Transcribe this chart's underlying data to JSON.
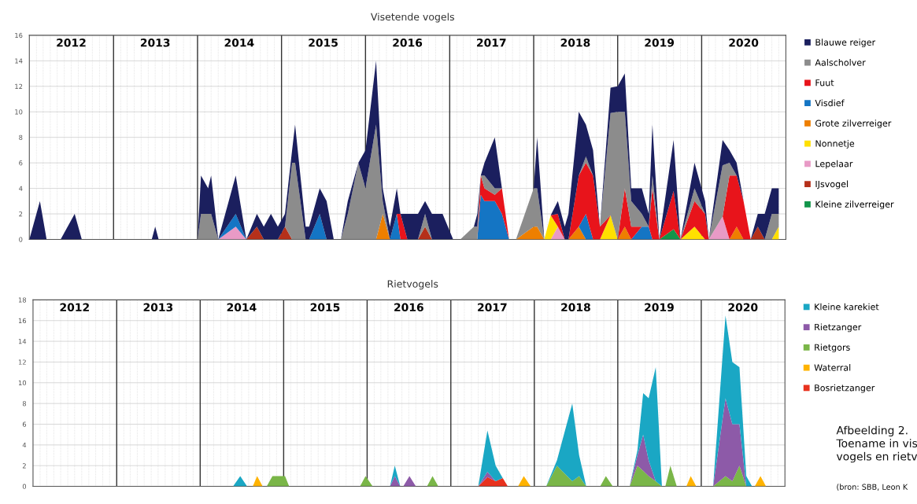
{
  "chart_data": [
    {
      "type": "area",
      "title": "Visetende vogels",
      "stacked": true,
      "x": [
        "2012-01-01",
        "2012-02-16",
        "2012-03-16",
        "2012-05-16",
        "2012-07-16",
        "2012-08-16",
        "2013-06-16",
        "2013-07-01",
        "2013-07-16",
        "2014-01-01",
        "2014-01-16",
        "2014-02-16",
        "2014-03-01",
        "2014-04-01",
        "2014-06-16",
        "2014-08-01",
        "2014-09-16",
        "2014-10-16",
        "2014-11-16",
        "2014-12-16",
        "2015-01-16",
        "2015-02-16",
        "2015-03-01",
        "2015-04-16",
        "2015-05-01",
        "2015-06-16",
        "2015-07-16",
        "2015-08-16",
        "2015-09-16",
        "2015-10-16",
        "2015-12-01",
        "2016-01-01",
        "2016-02-16",
        "2016-03-16",
        "2016-04-16",
        "2016-05-16",
        "2016-06-01",
        "2016-07-01",
        "2016-08-16",
        "2016-09-16",
        "2016-10-16",
        "2016-12-01",
        "2017-01-16",
        "2017-02-16",
        "2017-04-16",
        "2017-05-01",
        "2017-05-16",
        "2017-06-01",
        "2017-07-16",
        "2017-08-16",
        "2017-09-16",
        "2017-10-16",
        "2018-01-01",
        "2018-01-16",
        "2018-02-16",
        "2018-03-16",
        "2018-04-16",
        "2018-05-16",
        "2018-06-01",
        "2018-07-16",
        "2018-08-16",
        "2018-09-16",
        "2018-10-16",
        "2018-12-01",
        "2019-01-01",
        "2019-02-01",
        "2019-03-01",
        "2019-04-16",
        "2019-05-16",
        "2019-06-01",
        "2019-07-01",
        "2019-09-01",
        "2019-10-01",
        "2019-12-01",
        "2020-01-16",
        "2020-02-01",
        "2020-04-01",
        "2020-05-01",
        "2020-06-01",
        "2020-07-01",
        "2020-08-01",
        "2020-09-01",
        "2020-10-01",
        "2020-11-01",
        "2020-12-01"
      ],
      "series": [
        {
          "name": "Kleine zilverreiger",
          "color": "#12954a",
          "values": [
            0,
            0,
            0,
            0,
            0,
            0,
            0,
            0,
            0,
            0,
            0,
            0,
            0,
            0,
            0,
            0,
            0,
            0,
            0,
            0,
            0,
            0,
            0,
            0,
            0,
            0,
            0,
            0,
            0,
            0,
            0,
            0,
            0,
            0,
            0,
            0,
            0,
            0,
            0,
            0,
            0,
            0,
            0,
            0,
            0,
            0,
            0,
            0,
            0,
            0,
            0,
            0,
            0,
            0,
            0,
            0,
            0,
            0,
            0,
            0,
            0,
            0,
            0,
            0,
            0,
            0,
            0,
            0,
            0,
            0,
            0,
            0.8,
            0,
            0,
            0,
            0,
            0,
            0,
            0,
            0,
            0,
            0,
            0,
            0,
            0
          ]
        },
        {
          "name": "IJsvogel",
          "color": "#b5301a",
          "values": [
            0,
            0,
            0,
            0,
            0,
            0,
            0,
            0,
            0,
            0,
            0,
            0,
            0,
            0,
            0,
            0,
            1,
            0,
            0,
            0,
            1,
            0,
            0,
            0,
            0,
            0,
            0,
            0,
            0,
            0,
            0,
            0,
            0,
            0,
            0,
            0,
            0,
            0,
            0,
            1,
            0,
            0,
            0,
            0,
            0,
            0,
            0,
            0,
            0,
            0,
            0,
            0,
            0,
            0,
            0,
            0,
            0,
            0,
            0,
            0,
            0,
            0,
            0,
            0,
            0,
            0,
            0,
            0,
            0,
            0,
            0,
            0,
            0,
            0,
            0,
            0,
            0,
            0,
            0,
            0,
            0,
            1,
            0,
            0,
            0
          ]
        },
        {
          "name": "Lepelaar",
          "color": "#e89ac6",
          "values": [
            0,
            0,
            0,
            0,
            0,
            0,
            0,
            0,
            0,
            0,
            0,
            0,
            0,
            0,
            1,
            0,
            0,
            0,
            0,
            0,
            0,
            0,
            0,
            0,
            0,
            0,
            0,
            0,
            0,
            0,
            0,
            0,
            0,
            0,
            0,
            0,
            0,
            0,
            0,
            0,
            0,
            0,
            0,
            0,
            0,
            0,
            0,
            0,
            0,
            0,
            0,
            0,
            0,
            0,
            0,
            0,
            1,
            0,
            0,
            0,
            0,
            0,
            0,
            0,
            0,
            0,
            0,
            0,
            0,
            0,
            0,
            0,
            0,
            0,
            0,
            0,
            1.8,
            0,
            0,
            0,
            0,
            0,
            0,
            0,
            0
          ]
        },
        {
          "name": "Nonnetje",
          "color": "#ffe000",
          "values": [
            0,
            0,
            0,
            0,
            0,
            0,
            0,
            0,
            0,
            0,
            0,
            0,
            0,
            0,
            0,
            0,
            0,
            0,
            0,
            0,
            0,
            0,
            0,
            0,
            0,
            0,
            0,
            0,
            0,
            0,
            0,
            0,
            0,
            0,
            0,
            0,
            0,
            0,
            0,
            0,
            0,
            0,
            0,
            0,
            0,
            0,
            0,
            0,
            0,
            0,
            0,
            0,
            0,
            0,
            0,
            1.9,
            0,
            0,
            0,
            0,
            0,
            0,
            0,
            1.9,
            0,
            0,
            0,
            0,
            0,
            0,
            0,
            0,
            0,
            1,
            0,
            0,
            0,
            0,
            0,
            0,
            0,
            0,
            0,
            0,
            1
          ]
        },
        {
          "name": "Grote zilverreiger",
          "color": "#ee7f00",
          "values": [
            0,
            0,
            0,
            0,
            0,
            0,
            0,
            0,
            0,
            0,
            0,
            0,
            0,
            0,
            0,
            0,
            0,
            0,
            0,
            0,
            0,
            0,
            0,
            0,
            0,
            0,
            0,
            0,
            0,
            0,
            0,
            0,
            0,
            2,
            0,
            0,
            0,
            0,
            0,
            0,
            0,
            0,
            0,
            0,
            0,
            0,
            0,
            0,
            0,
            0,
            0,
            0,
            1,
            1,
            0,
            0,
            0,
            0,
            0,
            1,
            0,
            0,
            0,
            0,
            0,
            1,
            0,
            0,
            0,
            0,
            0,
            0,
            0,
            0,
            0,
            0,
            0,
            0,
            1,
            0,
            0,
            0,
            0,
            0,
            0
          ]
        },
        {
          "name": "Visdief",
          "color": "#1475c4",
          "values": [
            0,
            0,
            0,
            0,
            0,
            0,
            0,
            0,
            0,
            0,
            0,
            0,
            0,
            0,
            1,
            0,
            0,
            0,
            0,
            0,
            0,
            0,
            0,
            0,
            0,
            2,
            0,
            0,
            0,
            0,
            0,
            0,
            0,
            0,
            0,
            2,
            0,
            0,
            0,
            0,
            0,
            0,
            0,
            0,
            0,
            0,
            3.5,
            3,
            3,
            2,
            0,
            0,
            0,
            0,
            0,
            0,
            0,
            0,
            0,
            0,
            2,
            0,
            0,
            0,
            0,
            0,
            0,
            1,
            1,
            0,
            0,
            0,
            0,
            0,
            0,
            0,
            0,
            0,
            0,
            0,
            0,
            0,
            0,
            0,
            0
          ]
        },
        {
          "name": "Fuut",
          "color": "#e8141b",
          "values": [
            0,
            0,
            0,
            0,
            0,
            0,
            0,
            0,
            0,
            0,
            0,
            0,
            0,
            0,
            0,
            0,
            0,
            0,
            0,
            0,
            0,
            0,
            0,
            0,
            0,
            0,
            0,
            0,
            0,
            0,
            0,
            0,
            0,
            0,
            0,
            0,
            2,
            0,
            0,
            0,
            0,
            0,
            0,
            0,
            0,
            0,
            1.5,
            1,
            0.5,
            2,
            0,
            0,
            0,
            0,
            0,
            0,
            1,
            0,
            0,
            4,
            4,
            5,
            1,
            0,
            0,
            3,
            1,
            0,
            0,
            4,
            0,
            3,
            0,
            2,
            2,
            0,
            0,
            5,
            4,
            3,
            0,
            0,
            0,
            0,
            0
          ]
        },
        {
          "name": "Aalscholver",
          "color": "#8c8c8c",
          "values": [
            0,
            0,
            0,
            0,
            0,
            0,
            0,
            0,
            0,
            0,
            2,
            2,
            2,
            0,
            0,
            0,
            0,
            0,
            0,
            0,
            0,
            6,
            6,
            0,
            0,
            0,
            0,
            0,
            0,
            2,
            6,
            4,
            9,
            1,
            0,
            0,
            0,
            0,
            0,
            1,
            0,
            0,
            0,
            0,
            1,
            1,
            0,
            1,
            0.5,
            0,
            0,
            0,
            3,
            3,
            0,
            0,
            0,
            0,
            0,
            0,
            0.5,
            0,
            0,
            8,
            10,
            6,
            2,
            1,
            0,
            1,
            0,
            0,
            0,
            1,
            0,
            0,
            4,
            1,
            0,
            0,
            0,
            0,
            0,
            2,
            1
          ]
        },
        {
          "name": "Blauwe reiger",
          "color": "#1b1f5e",
          "values": [
            0,
            3,
            0,
            0,
            2,
            0,
            0,
            1,
            0,
            0,
            3,
            2,
            3,
            0,
            3,
            0,
            1,
            1,
            2,
            1,
            1,
            1,
            3,
            1,
            1,
            2,
            3,
            0,
            0,
            1,
            0,
            3,
            5,
            1,
            1,
            2,
            0,
            2,
            2,
            1,
            2,
            2,
            0,
            0,
            0,
            1,
            0,
            1,
            4,
            0,
            0,
            0,
            0,
            4,
            0,
            0,
            1,
            1,
            2,
            5,
            2.5,
            2,
            0,
            2,
            2,
            3,
            1,
            2,
            1,
            4,
            0,
            4,
            0,
            2,
            1,
            0,
            2,
            1,
            1,
            0,
            0,
            1,
            2,
            2,
            2
          ]
        }
      ],
      "xlim": [
        "2012-01-01",
        "2021-01-01"
      ],
      "xticks": [
        {
          "value": "2012-07-01",
          "label": "2012"
        },
        {
          "value": "2013-07-01",
          "label": "2013"
        },
        {
          "value": "2014-07-01",
          "label": "2014"
        },
        {
          "value": "2015-07-01",
          "label": "2015"
        },
        {
          "value": "2016-07-01",
          "label": "2016"
        },
        {
          "value": "2017-07-01",
          "label": "2017"
        },
        {
          "value": "2018-07-01",
          "label": "2018"
        },
        {
          "value": "2019-07-01",
          "label": "2019"
        },
        {
          "value": "2020-07-01",
          "label": "2020"
        }
      ],
      "ylim": [
        0,
        16
      ],
      "yticks": [
        0,
        2,
        4,
        6,
        8,
        10,
        12,
        14,
        16
      ],
      "ref_lines": [
        {
          "axis": "x",
          "value": "2013-01-01",
          "color": "#333333"
        },
        {
          "axis": "x",
          "value": "2014-01-01",
          "color": "#333333"
        },
        {
          "axis": "x",
          "value": "2015-01-01",
          "color": "#333333"
        },
        {
          "axis": "x",
          "value": "2016-01-01",
          "color": "#333333"
        },
        {
          "axis": "x",
          "value": "2017-01-01",
          "color": "#333333"
        },
        {
          "axis": "x",
          "value": "2018-01-01",
          "color": "#333333"
        },
        {
          "axis": "x",
          "value": "2019-01-01",
          "color": "#333333"
        },
        {
          "axis": "x",
          "value": "2020-01-01",
          "color": "#333333"
        }
      ],
      "grid": true,
      "legend": "right"
    },
    {
      "type": "area",
      "title": "Rietvogels",
      "stacked": true,
      "x": [
        "2012-01-01",
        "2014-05-25",
        "2014-06-25",
        "2014-07-25",
        "2014-08-19",
        "2014-09-07",
        "2014-10-01",
        "2014-10-19",
        "2014-11-13",
        "2015-01-07",
        "2015-01-25",
        "2015-12-01",
        "2015-12-25",
        "2016-01-25",
        "2016-04-10",
        "2016-05-01",
        "2016-05-25",
        "2016-06-07",
        "2016-07-04",
        "2016-08-01",
        "2016-09-19",
        "2016-10-13",
        "2016-11-07",
        "2017-05-01",
        "2017-06-10",
        "2017-07-16",
        "2017-08-16",
        "2017-09-07",
        "2017-10-22",
        "2017-11-16",
        "2017-12-16",
        "2018-02-22",
        "2018-04-10",
        "2018-06-16",
        "2018-07-16",
        "2018-08-16",
        "2018-10-16",
        "2018-11-10",
        "2018-12-10",
        "2019-02-22",
        "2019-03-28",
        "2019-04-22",
        "2019-05-16",
        "2019-06-16",
        "2019-07-13",
        "2019-07-28",
        "2019-08-19",
        "2019-09-16",
        "2019-10-28",
        "2019-11-16",
        "2019-12-10",
        "2020-02-22",
        "2020-04-16",
        "2020-05-16",
        "2020-06-16",
        "2020-07-16",
        "2020-08-10",
        "2020-08-22",
        "2020-09-16",
        "2020-10-10",
        "2020-12-01"
      ],
      "series": [
        {
          "name": "Bosrietzanger",
          "color": "#e8321e",
          "values": [
            0,
            0,
            0,
            0,
            0,
            0,
            0,
            0,
            0,
            0,
            0,
            0,
            0,
            0,
            0,
            0,
            0,
            0,
            0,
            0,
            0,
            0,
            0,
            0,
            0.9,
            0.5,
            0.8,
            0,
            0,
            0,
            0,
            0,
            0,
            0,
            0,
            0,
            0,
            0,
            0,
            0,
            0,
            0,
            0,
            0,
            0,
            0,
            0,
            0,
            0,
            0,
            0,
            0,
            0,
            0,
            0,
            0,
            0,
            0,
            0,
            0,
            0
          ]
        },
        {
          "name": "Waterral",
          "color": "#ffb300",
          "values": [
            0,
            0,
            0,
            0,
            0,
            1,
            0,
            0,
            0,
            0,
            0,
            0,
            0,
            0,
            0,
            0,
            0,
            0,
            0,
            0,
            0,
            0,
            0,
            0,
            0,
            0,
            0,
            0,
            0,
            1,
            0,
            0,
            0,
            0,
            0,
            0,
            0,
            0,
            0,
            0,
            0,
            0,
            0,
            0,
            0,
            0,
            0,
            0,
            0,
            1,
            0,
            0,
            0,
            0,
            0,
            0,
            0,
            0,
            1,
            0,
            0
          ]
        },
        {
          "name": "Rietgors",
          "color": "#7ab648",
          "values": [
            0,
            0,
            0,
            0,
            0,
            0,
            0,
            0,
            1,
            1,
            0,
            0,
            1,
            0,
            0,
            0,
            0,
            0,
            0,
            0,
            0,
            1,
            0,
            0,
            0,
            0,
            0,
            0,
            0,
            0,
            0,
            0,
            2,
            0.5,
            1,
            0,
            0,
            1,
            0,
            0,
            2,
            1.5,
            1,
            0.5,
            0,
            0,
            2,
            0,
            0,
            0,
            0,
            0,
            1,
            0.5,
            2,
            0,
            0,
            0,
            0,
            0,
            0
          ]
        },
        {
          "name": "Rietzanger",
          "color": "#8d5aa8",
          "values": [
            0,
            0,
            0,
            0,
            0,
            0,
            0,
            0,
            0,
            0,
            0,
            0,
            0,
            0,
            0,
            1,
            0,
            0,
            1,
            0,
            0,
            0,
            0,
            0,
            0.5,
            0,
            0,
            0,
            0,
            0,
            0,
            0,
            0,
            0,
            0,
            0,
            0,
            0,
            0,
            0,
            1,
            3.5,
            1.5,
            0,
            0,
            0,
            0,
            0,
            0,
            0,
            0,
            0,
            7.5,
            5.5,
            4,
            0,
            0,
            0,
            0,
            0,
            0
          ]
        },
        {
          "name": "Kleine karekiet",
          "color": "#1aa7c4",
          "values": [
            0,
            0,
            1,
            0,
            0,
            0,
            0,
            0,
            0,
            0,
            0,
            0,
            0,
            0,
            0,
            1,
            0,
            0,
            0,
            0,
            0,
            0,
            0,
            0,
            4,
            1.5,
            0,
            0,
            0,
            0,
            0,
            0,
            0.5,
            7.5,
            2,
            0,
            0,
            0,
            0,
            0,
            0.5,
            4,
            6,
            11,
            0,
            0,
            0,
            0,
            0,
            0,
            0,
            0,
            8,
            6,
            5.5,
            1,
            0,
            0,
            0,
            0,
            0
          ]
        }
      ],
      "xlim": [
        "2012-01-01",
        "2021-01-01"
      ],
      "xticks": [
        {
          "value": "2012-07-01",
          "label": "2012"
        },
        {
          "value": "2013-07-01",
          "label": "2013"
        },
        {
          "value": "2014-07-01",
          "label": "2014"
        },
        {
          "value": "2015-07-01",
          "label": "2015"
        },
        {
          "value": "2016-07-01",
          "label": "2016"
        },
        {
          "value": "2017-07-01",
          "label": "2017"
        },
        {
          "value": "2018-07-01",
          "label": "2018"
        },
        {
          "value": "2019-07-01",
          "label": "2019"
        },
        {
          "value": "2020-07-01",
          "label": "2020"
        }
      ],
      "ylim": [
        0,
        18
      ],
      "yticks": [
        0,
        2,
        4,
        6,
        8,
        10,
        12,
        14,
        16,
        18
      ],
      "ref_lines": [
        {
          "axis": "x",
          "value": "2013-01-01",
          "color": "#333333"
        },
        {
          "axis": "x",
          "value": "2014-01-01",
          "color": "#333333"
        },
        {
          "axis": "x",
          "value": "2015-01-01",
          "color": "#333333"
        },
        {
          "axis": "x",
          "value": "2016-01-01",
          "color": "#333333"
        },
        {
          "axis": "x",
          "value": "2017-01-01",
          "color": "#333333"
        },
        {
          "axis": "x",
          "value": "2018-01-01",
          "color": "#333333"
        },
        {
          "axis": "x",
          "value": "2019-01-01",
          "color": "#333333"
        },
        {
          "axis": "x",
          "value": "2020-01-01",
          "color": "#333333"
        }
      ],
      "grid": true,
      "legend": "right",
      "annotations": [
        "Afbeelding 2.\nToename in vis\nvogels en rietv",
        "(bron: SBB, Leon K"
      ]
    }
  ]
}
